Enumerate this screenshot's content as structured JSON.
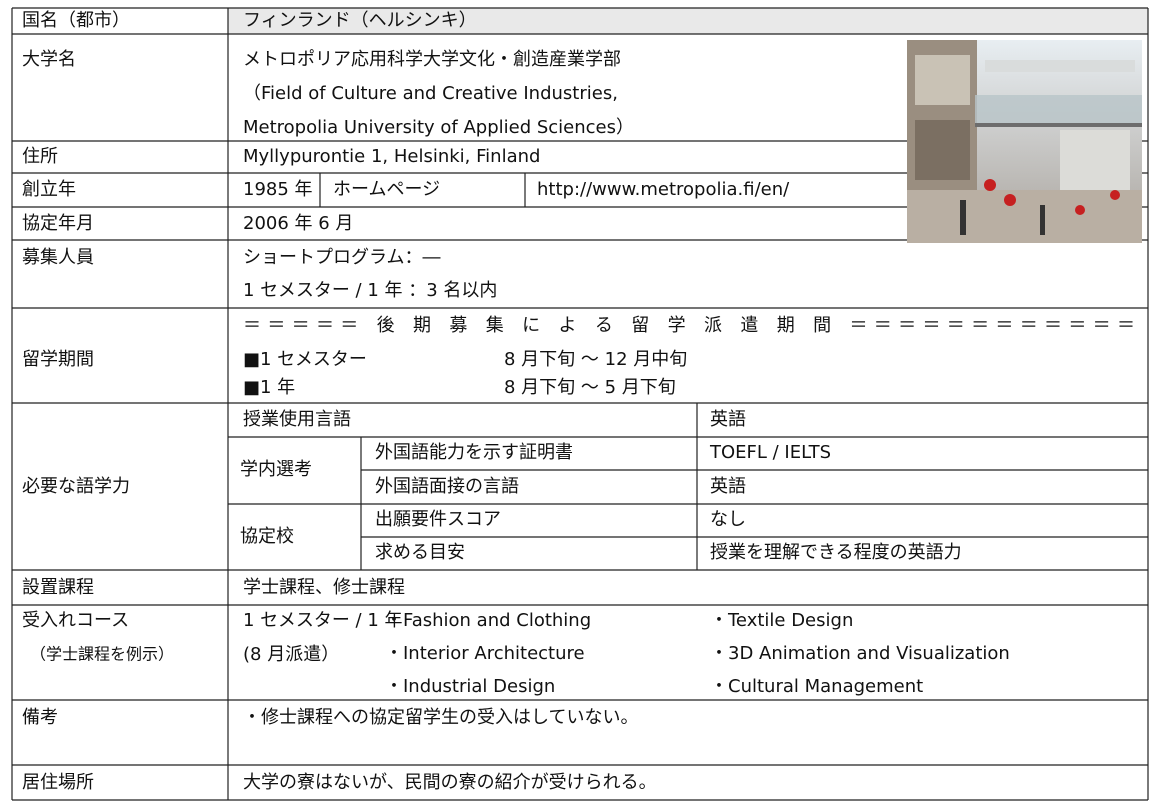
{
  "table": {
    "country": {
      "label": "国名（都市）",
      "value": "フィンランド（ヘルシンキ）"
    },
    "university": {
      "label": "大学名",
      "lines": [
        "メトロポリア応用科学大学文化・創造産業学部",
        "（Field of Culture and Creative Industries,",
        "Metropolia University of Applied Sciences）"
      ]
    },
    "address": {
      "label": "住所",
      "value": "Myllypurontie 1, Helsinki, Finland"
    },
    "founded": {
      "label": "創立年",
      "value": "1985 年",
      "homepage_label": "ホームページ",
      "homepage": "http://www.metropolia.fi/en/"
    },
    "agreement": {
      "label": "協定年月",
      "value": "2006 年 6 月"
    },
    "recruitment": {
      "label": "募集人員",
      "lines": [
        "ショートプログラム：―",
        "1 セメスター / 1 年 ：3 名以内"
      ]
    },
    "period": {
      "label": "留学期間",
      "heading": "＝＝＝＝＝ 後 期 募 集 に よ る 留 学 派 遣 期 間 ＝＝＝＝＝＝＝＝＝＝＝＝",
      "items": [
        [
          "■1 セメスター",
          "8 月下旬 ～ 12 月中旬"
        ],
        [
          "■1 年",
          "8 月下旬 ～ 5 月下旬"
        ]
      ]
    },
    "language": {
      "label": "必要な語学力",
      "teaching_language": [
        "授業使用言語",
        "英語"
      ],
      "internal": {
        "label": "学内選考",
        "rows": [
          [
            "外国語能力を示す証明書",
            "TOEFL / IELTS"
          ],
          [
            "外国語面接の言語",
            "英語"
          ]
        ]
      },
      "partner": {
        "label": "協定校",
        "rows": [
          [
            "出願要件スコア",
            "なし"
          ],
          [
            "求める目安",
            "授業を理解できる程度の英語力"
          ]
        ]
      }
    },
    "programs": {
      "label": "設置課程",
      "value": "学士課程、修士課程"
    },
    "courses": {
      "label": "受入れコース",
      "sublabel": "（学士課程を例示）",
      "term": "1 セメスター / 1 年",
      "dispatch": "(8 月派遣）",
      "items": [
        "・Fashion and Clothing",
        "・Textile Design",
        "・Interior Architecture",
        "・3D Animation and Visualization",
        "・Industrial Design",
        "・Cultural Management"
      ]
    },
    "notes": {
      "label": "備考",
      "value": "・修士課程への協定留学生の受入はしていない。"
    },
    "residence": {
      "label": "居住場所",
      "value": "大学の寮はないが、民間の寮の紹介が受けられる。"
    }
  }
}
